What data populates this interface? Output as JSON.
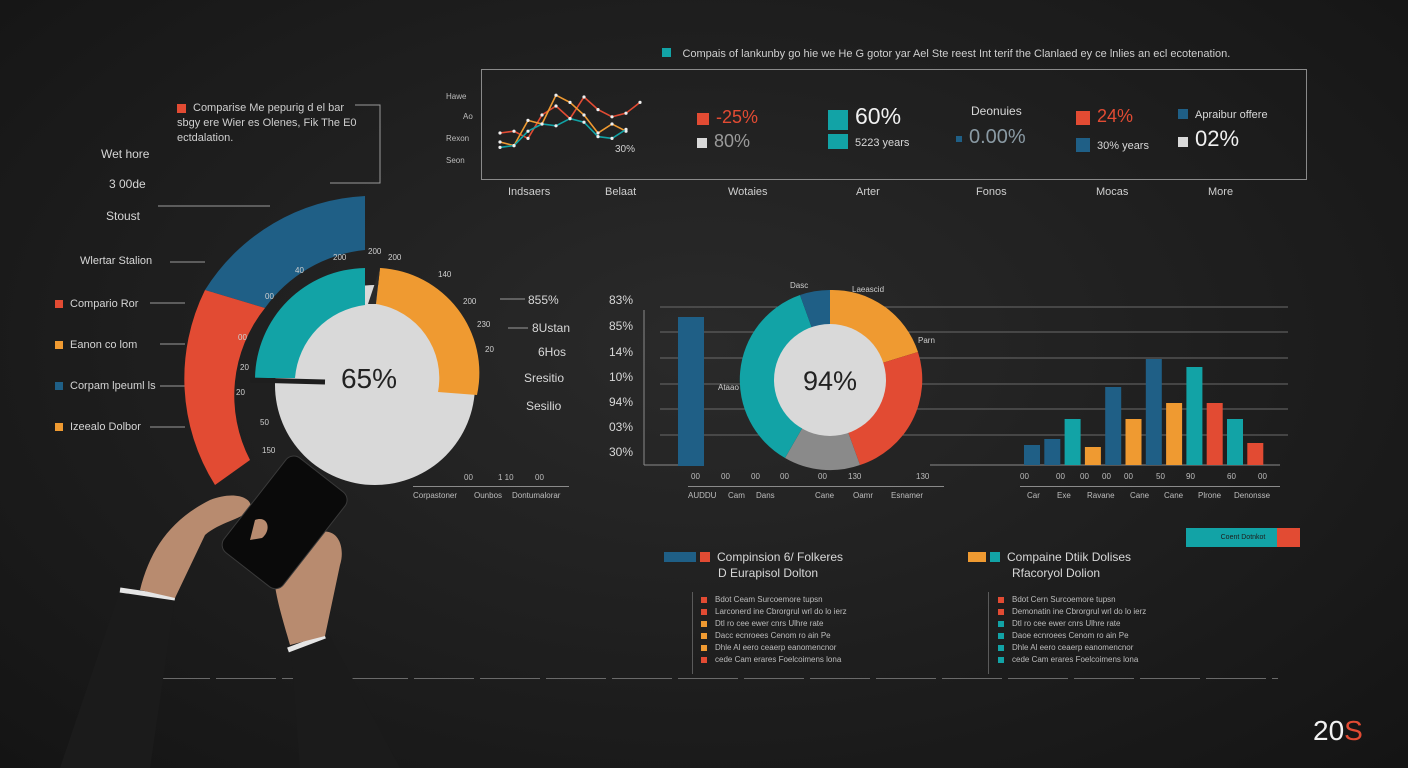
{
  "colors": {
    "teal": "#12a3a6",
    "blue": "#1f5f86",
    "orange": "#ef9a31",
    "red": "#e24b33",
    "grey": "#d9d9d9",
    "dark": "#1e1e1e"
  },
  "header": {
    "text": "Compais of lankunby go hie we He G gotor yar Ael Ste reest Int terif the Clanlaed ey ce lnlies an ecl ecotenation."
  },
  "left_note": {
    "line1": "Comparise Me pepurig d el bar",
    "line2": "sbgy ere Wier es Olenes, Fik The E0",
    "line3": "ectdalation."
  },
  "left_labels": [
    "Wet hore",
    "3 00de",
    "Stoust",
    "Wlertar Stalion"
  ],
  "left_legend": [
    {
      "label": "Compario Ror",
      "icon": "red-square-icon",
      "color": "#e24b33"
    },
    {
      "label": "Eanon co lom",
      "icon": "orange-square-icon",
      "color": "#ef9a31"
    },
    {
      "label": "Corpam lpeuml ls",
      "icon": "blue-square-icon",
      "color": "#1f5f86"
    },
    {
      "label": "Izeealo Dolbor",
      "icon": "orange-square-icon",
      "color": "#ef9a31"
    }
  ],
  "donut_left": {
    "center": "65%",
    "ticks": [
      "200",
      "200",
      "200",
      "140",
      "40",
      "200",
      "00",
      "230",
      "00",
      "20",
      "20",
      "20",
      "50",
      "150",
      "20",
      "10",
      "20"
    ],
    "side_values": [
      "855%",
      "8Ustan",
      "6Hos",
      "Sresitio",
      "Sesilio"
    ],
    "bottom_ticks": [
      "00",
      "1 10",
      "00"
    ],
    "bottom_labels": [
      "Corpastoner",
      "Ounbos",
      "Dontumalorar"
    ]
  },
  "kpi": {
    "chart": {
      "y_labels": [
        "Hawe",
        "Ao",
        "Rexon",
        "Seon"
      ],
      "annotation": "30%",
      "series": [
        {
          "values": [
            3,
            3.2,
            2.4,
            5,
            6,
            4.6,
            7,
            5.6,
            4.8,
            5.2,
            6.4
          ]
        },
        {
          "values": [
            2,
            1.6,
            4.4,
            4,
            7.2,
            6.4,
            5,
            3,
            4,
            3.2
          ]
        },
        {
          "values": [
            1.4,
            1.6,
            3.2,
            4,
            3.8,
            4.6,
            4.2,
            2.6,
            2.4,
            3.4
          ]
        }
      ]
    },
    "items": [
      {
        "icon": "red-square-icon",
        "color": "#e24b33",
        "value": "-25%"
      },
      {
        "icon": "grey-square-icon",
        "color": "#d9d9d9",
        "value": "80%"
      },
      {
        "icon": "teal-square-icon",
        "color": "#12a3a6",
        "value": "60%"
      },
      {
        "icon": "teal-square-icon",
        "color": "#12a3a6",
        "value": "5223 years"
      },
      {
        "heading": "Deonuies"
      },
      {
        "icon": "blue-square-icon",
        "color": "#1f5f86",
        "value": "0.00%"
      },
      {
        "icon": "red-square-icon",
        "color": "#e24b33",
        "value": "24%"
      },
      {
        "icon": "arrow-icon",
        "color": "#1f5f86",
        "value": "30% years"
      },
      {
        "icon": "blue-square-icon",
        "color": "#1f5f86",
        "value": "Apraibur offere"
      },
      {
        "icon": "grey-square-icon",
        "color": "#d9d9d9",
        "value": "02%"
      }
    ],
    "bottom_labels": [
      "Indsaers",
      "Belaat",
      "Wotaies",
      "Arter",
      "Fonos",
      "Mocas",
      "More"
    ]
  },
  "mid_chart": {
    "y_labels": [
      "83%",
      "85%",
      "14%",
      "10%",
      "94%",
      "03%",
      "30%"
    ],
    "center": "94%",
    "donut_labels": [
      "Dasc",
      "Laeascid",
      "Parn",
      "Ataao"
    ],
    "bottom_ticks": [
      "00",
      "00",
      "00",
      "00",
      "00",
      "130",
      "130"
    ],
    "bottom_labels": [
      "AUDDU",
      "Cam",
      "Dans",
      "Cane",
      "Oamr",
      "Esnamer"
    ]
  },
  "right_chart": {
    "bottom_ticks": [
      "00",
      "00",
      "00",
      "00",
      "00",
      "50",
      "90",
      "60",
      "00"
    ],
    "bottom_labels": [
      "Car",
      "Exe",
      "Ravane",
      "Cane",
      "Cane",
      "Plrone",
      "Denonsse"
    ],
    "bars": [
      {
        "color": "#1f5f86",
        "value": 1.0
      },
      {
        "color": "#1f5f86",
        "value": 1.3
      },
      {
        "color": "#12a3a6",
        "value": 2.3
      },
      {
        "color": "#ef9a31",
        "value": 0.9
      },
      {
        "color": "#1f5f86",
        "value": 3.9
      },
      {
        "color": "#ef9a31",
        "value": 2.3
      },
      {
        "color": "#1f5f86",
        "value": 5.3
      },
      {
        "color": "#ef9a31",
        "value": 3.1
      },
      {
        "color": "#12a3a6",
        "value": 4.9
      },
      {
        "color": "#e24b33",
        "value": 3.1
      },
      {
        "color": "#12a3a6",
        "value": 2.3
      },
      {
        "color": "#e24b33",
        "value": 1.1
      }
    ]
  },
  "tag": {
    "label": "Coent Dotnkot"
  },
  "legend_block_left": {
    "title1": "Compinsion 6/ Folkeres",
    "title2": "D Eurapisol Dolton",
    "items": [
      {
        "color": "#e24b33",
        "text": "Bdot Ceam Surcoemore tupsn"
      },
      {
        "color": "#e24b33",
        "text": "Larconerd ine Cbrorgrul wrl do lo ierz"
      },
      {
        "color": "#ef9a31",
        "text": "Dtl ro cee ewer cnrs Ulhre rate"
      },
      {
        "color": "#ef9a31",
        "text": "Dacc ecnroees Cenom ro ain Pe"
      },
      {
        "color": "#ef9a31",
        "text": "Dhle Al eero ceaerp eanomencnor"
      },
      {
        "color": "#e24b33",
        "text": "cede Cam erares Foelcoimens lona"
      }
    ]
  },
  "legend_block_right": {
    "title1": "Compaine Dtiik Dolises",
    "title2": "Rfacoryol Dolion",
    "items": [
      {
        "color": "#e24b33",
        "text": "Bdot Cern Surcoemore tupsn"
      },
      {
        "color": "#e24b33",
        "text": "Demonatin ine Cbrorgrul wrl do lo ierz"
      },
      {
        "color": "#12a3a6",
        "text": "Dtl ro cee ewer cnrs Ulhre rate"
      },
      {
        "color": "#12a3a6",
        "text": "Daoe ecnroees Cenom ro ain Pe"
      },
      {
        "color": "#12a3a6",
        "text": "Dhle Al eero ceaerp eanomencnor"
      },
      {
        "color": "#12a3a6",
        "text": "cede Cam erares Foelcoimens lona"
      }
    ]
  },
  "corner": {
    "prefix": "20",
    "suffix": "S"
  }
}
